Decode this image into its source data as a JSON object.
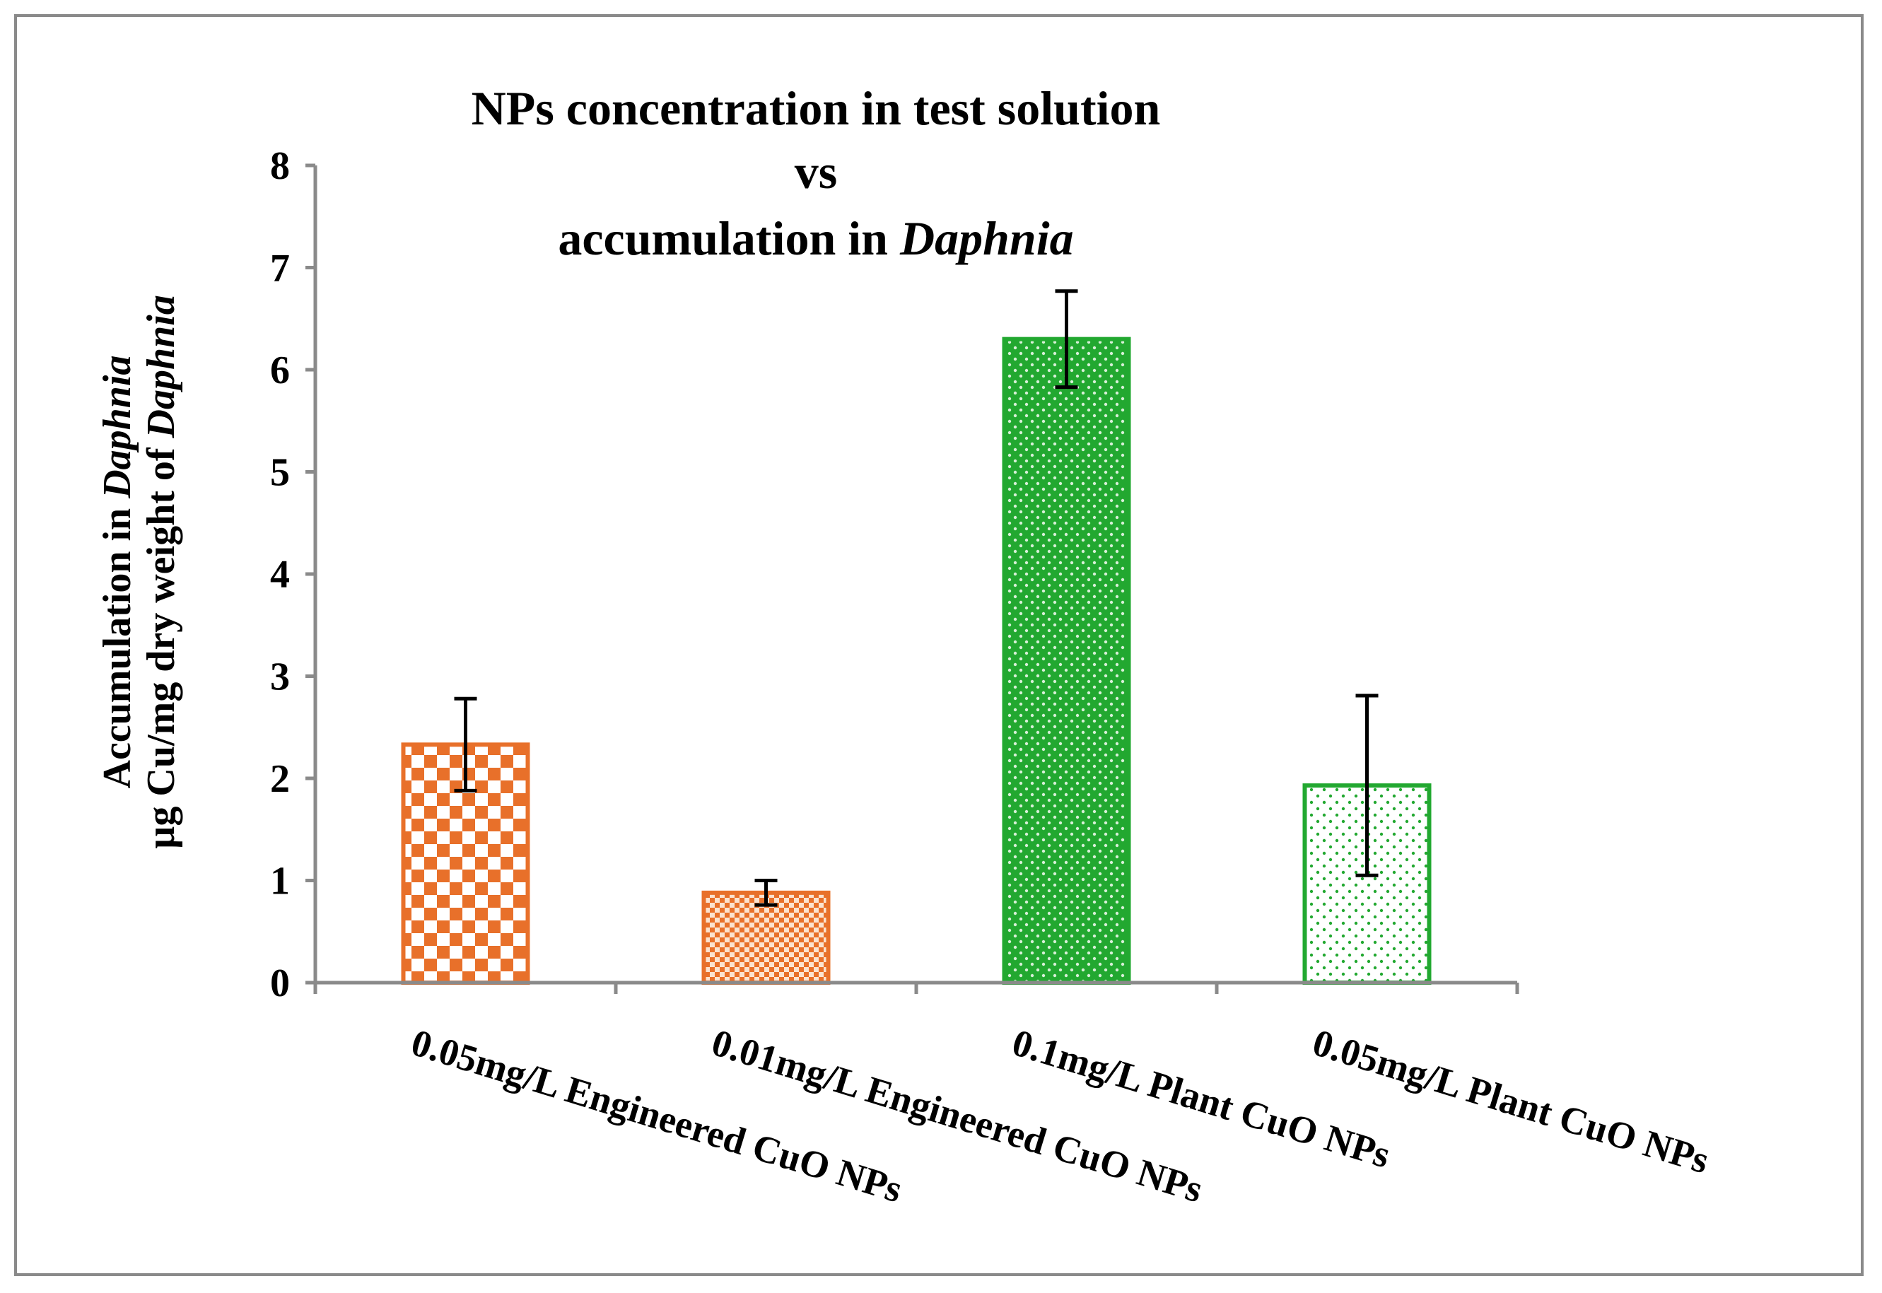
{
  "chart_data": {
    "type": "bar",
    "title_lines": [
      [
        "NPs concentration in test solution"
      ],
      [
        "vs"
      ],
      [
        "accumulation in ",
        "Daphnia"
      ]
    ],
    "ylabel_lines": [
      [
        "Accumulation in ",
        "Daphnia"
      ],
      [
        "µg Cu/mg dry weight of ",
        "Daphnia"
      ]
    ],
    "xlabel": "",
    "categories": [
      "0.05mg/L Engineered CuO NPs",
      "0.01mg/L Engineered CuO NPs",
      "0.1mg/L Plant CuO NPs",
      "0.05mg/L Plant CuO NPs"
    ],
    "values": [
      2.33,
      0.88,
      6.3,
      1.93
    ],
    "errors": [
      0.45,
      0.12,
      0.47,
      0.88
    ],
    "ylim": [
      0,
      8
    ],
    "yticks": [
      0,
      1,
      2,
      3,
      4,
      5,
      6,
      7,
      8
    ],
    "grid": false,
    "legend": "none",
    "bar_styles": [
      {
        "pattern": "checker-large",
        "color": "#e8702a"
      },
      {
        "pattern": "checker-small",
        "color": "#e8702a"
      },
      {
        "pattern": "dots-dense",
        "color": "#22a830"
      },
      {
        "pattern": "dots-sparse",
        "color": "#22a830"
      }
    ]
  }
}
